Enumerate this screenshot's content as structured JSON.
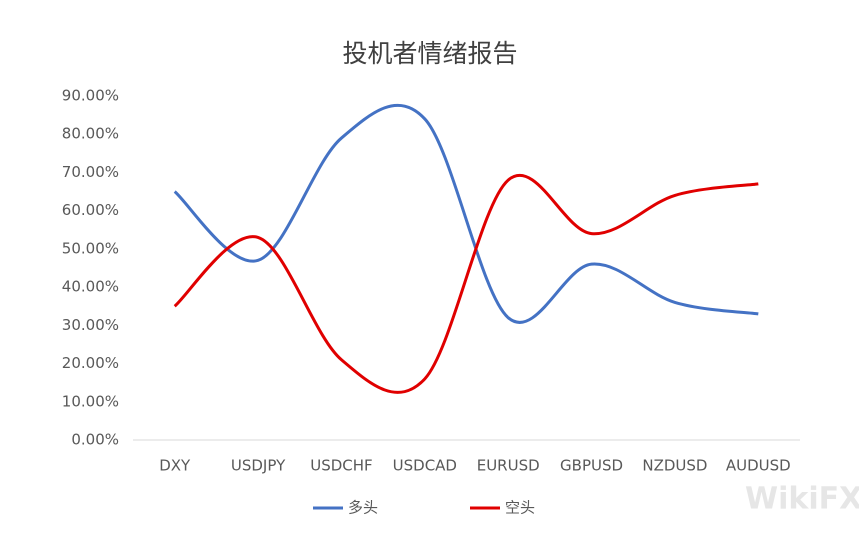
{
  "chart_data": {
    "type": "line",
    "title": "投机者情绪报告",
    "categories": [
      "DXY",
      "USDJPY",
      "USDCHF",
      "USDCAD",
      "EURUSD",
      "GBPUSD",
      "NZDUSD",
      "AUDUSD"
    ],
    "series": [
      {
        "name": "多头",
        "color": "#4472c4",
        "values": [
          65,
          47,
          79,
          84,
          32,
          46,
          36,
          33
        ]
      },
      {
        "name": "空头",
        "color": "#e00000",
        "values": [
          35,
          53,
          21,
          16,
          68,
          54,
          64,
          67
        ]
      }
    ],
    "ylim": [
      0,
      90
    ],
    "yticks": [
      {
        "value": 0,
        "label": "0.00%"
      },
      {
        "value": 10,
        "label": "10.00%"
      },
      {
        "value": 20,
        "label": "20.00%"
      },
      {
        "value": 30,
        "label": "30.00%"
      },
      {
        "value": 40,
        "label": "40.00%"
      },
      {
        "value": 50,
        "label": "50.00%"
      },
      {
        "value": 60,
        "label": "60.00%"
      },
      {
        "value": 70,
        "label": "70.00%"
      },
      {
        "value": 80,
        "label": "80.00%"
      },
      {
        "value": 90,
        "label": "90.00%"
      }
    ],
    "grid": false,
    "smooth": true,
    "legend": "bottom"
  },
  "watermark": "WikiFX"
}
